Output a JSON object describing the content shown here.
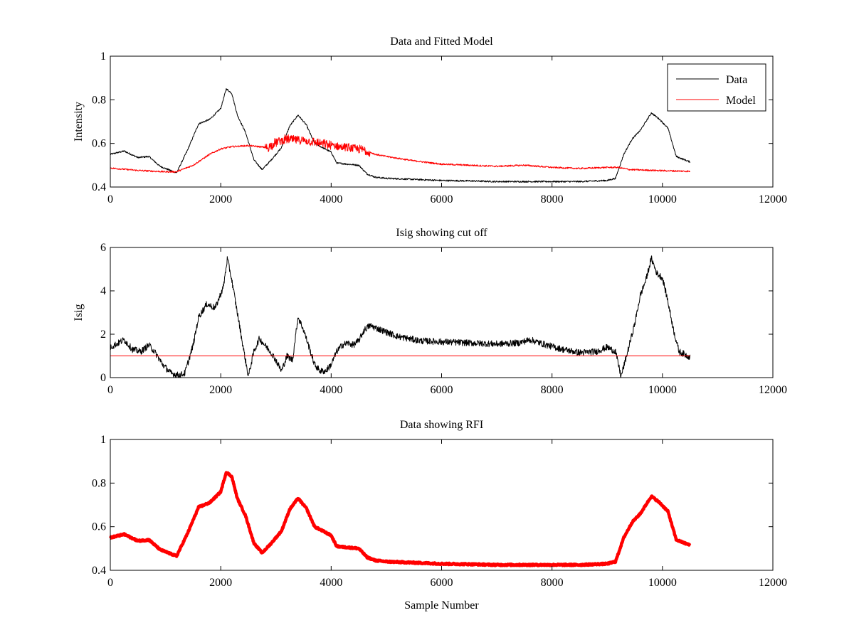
{
  "chart_data": [
    {
      "type": "line",
      "title": "Data and Fitted Model",
      "xlabel": "",
      "ylabel": "Intensity",
      "xlim": [
        0,
        12000
      ],
      "ylim": [
        0.4,
        1
      ],
      "xticks": [
        0,
        2000,
        4000,
        6000,
        8000,
        10000,
        12000
      ],
      "yticks": [
        0.4,
        0.6,
        0.8,
        1
      ],
      "xtick_labels": [
        "0",
        "2000",
        "4000",
        "6000",
        "8000",
        "10000",
        "12000"
      ],
      "ytick_labels": [
        "0.4",
        "0.6",
        "0.8",
        "1"
      ],
      "grid": false,
      "legend": "top-right",
      "series": [
        {
          "name": "Data",
          "color": "#000000",
          "x": [
            0,
            250,
            500,
            700,
            900,
            1050,
            1200,
            1400,
            1600,
            1800,
            2000,
            2100,
            2200,
            2300,
            2450,
            2600,
            2750,
            2900,
            3100,
            3250,
            3400,
            3550,
            3700,
            3850,
            4000,
            4100,
            4300,
            4500,
            4650,
            4800,
            5000,
            5500,
            6000,
            6500,
            7000,
            7500,
            8000,
            8500,
            9000,
            9150,
            9300,
            9450,
            9600,
            9800,
            9950,
            10100,
            10250,
            10500
          ],
          "y": [
            0.55,
            0.565,
            0.535,
            0.54,
            0.495,
            0.48,
            0.465,
            0.57,
            0.69,
            0.71,
            0.76,
            0.85,
            0.83,
            0.73,
            0.65,
            0.525,
            0.48,
            0.52,
            0.58,
            0.68,
            0.73,
            0.685,
            0.6,
            0.58,
            0.56,
            0.51,
            0.505,
            0.5,
            0.46,
            0.445,
            0.44,
            0.435,
            0.43,
            0.428,
            0.425,
            0.425,
            0.425,
            0.425,
            0.43,
            0.44,
            0.55,
            0.62,
            0.66,
            0.74,
            0.71,
            0.67,
            0.54,
            0.515
          ]
        },
        {
          "name": "Model",
          "color": "#ff0000",
          "x": [
            0,
            500,
            1000,
            1200,
            1500,
            1800,
            2000,
            2200,
            2500,
            2700,
            2850,
            3000,
            3200,
            3400,
            3600,
            3800,
            4000,
            4300,
            4600,
            4800,
            5000,
            5500,
            6000,
            6500,
            7000,
            7500,
            8000,
            8500,
            9000,
            9200,
            9400,
            10000,
            10500
          ],
          "y": [
            0.487,
            0.476,
            0.47,
            0.47,
            0.5,
            0.55,
            0.575,
            0.585,
            0.59,
            0.585,
            0.58,
            0.605,
            0.62,
            0.615,
            0.61,
            0.6,
            0.59,
            0.58,
            0.57,
            0.55,
            0.54,
            0.52,
            0.505,
            0.5,
            0.495,
            0.5,
            0.49,
            0.485,
            0.49,
            0.49,
            0.48,
            0.475,
            0.472
          ]
        }
      ]
    },
    {
      "type": "line",
      "title": "Isig showing cut off",
      "xlabel": "",
      "ylabel": "Isig",
      "xlim": [
        0,
        12000
      ],
      "ylim": [
        0,
        6
      ],
      "xticks": [
        0,
        2000,
        4000,
        6000,
        8000,
        10000,
        12000
      ],
      "yticks": [
        0,
        2,
        4,
        6
      ],
      "xtick_labels": [
        "0",
        "2000",
        "4000",
        "6000",
        "8000",
        "10000",
        "12000"
      ],
      "ytick_labels": [
        "0",
        "2",
        "4",
        "6"
      ],
      "grid": false,
      "series": [
        {
          "color": "#000000",
          "x": [
            0,
            150,
            250,
            400,
            550,
            700,
            800,
            950,
            1100,
            1250,
            1350,
            1500,
            1600,
            1750,
            1900,
            2050,
            2120,
            2200,
            2300,
            2400,
            2500,
            2600,
            2700,
            2800,
            2900,
            3000,
            3100,
            3200,
            3300,
            3400,
            3500,
            3600,
            3700,
            3800,
            3900,
            4000,
            4100,
            4200,
            4300,
            4400,
            4500,
            4600,
            4700,
            4900,
            5200,
            5600,
            6000,
            6500,
            7000,
            7400,
            7600,
            7900,
            8200,
            8500,
            8800,
            9000,
            9150,
            9250,
            9350,
            9500,
            9600,
            9700,
            9800,
            9900,
            10000,
            10100,
            10200,
            10300,
            10500
          ],
          "y": [
            1.4,
            1.6,
            1.75,
            1.3,
            1.2,
            1.5,
            1.2,
            0.6,
            0.2,
            0.1,
            0.2,
            1.5,
            2.8,
            3.4,
            3.2,
            4.2,
            5.5,
            4.5,
            3.0,
            1.5,
            0.05,
            1.2,
            1.8,
            1.5,
            1.2,
            0.8,
            0.3,
            1.0,
            0.8,
            2.8,
            2.2,
            1.4,
            0.6,
            0.3,
            0.3,
            0.6,
            1.2,
            1.5,
            1.6,
            1.5,
            1.7,
            2.2,
            2.4,
            2.2,
            1.9,
            1.7,
            1.65,
            1.6,
            1.55,
            1.6,
            1.75,
            1.5,
            1.3,
            1.15,
            1.2,
            1.4,
            1.2,
            0.05,
            1.0,
            2.5,
            3.8,
            4.5,
            5.5,
            4.8,
            4.6,
            3.5,
            2.2,
            1.2,
            0.95
          ]
        },
        {
          "color": "#ff0000",
          "x": [
            0,
            10500
          ],
          "y": [
            1,
            1
          ]
        }
      ]
    },
    {
      "type": "line",
      "title": "Data showing RFI",
      "xlabel": "Sample Number",
      "ylabel": "",
      "xlim": [
        0,
        12000
      ],
      "ylim": [
        0.4,
        1
      ],
      "xticks": [
        0,
        2000,
        4000,
        6000,
        8000,
        10000,
        12000
      ],
      "yticks": [
        0.4,
        0.6,
        0.8,
        1
      ],
      "xtick_labels": [
        "0",
        "2000",
        "4000",
        "6000",
        "8000",
        "10000",
        "12000"
      ],
      "ytick_labels": [
        "0.4",
        "0.6",
        "0.8",
        "1"
      ],
      "grid": false,
      "series": [
        {
          "color": "#ff0000",
          "x": [
            0,
            250,
            500,
            700,
            900,
            1050,
            1200,
            1400,
            1600,
            1800,
            2000,
            2100,
            2200,
            2300,
            2450,
            2600,
            2750,
            2900,
            3100,
            3250,
            3400,
            3550,
            3700,
            3850,
            4000,
            4100,
            4300,
            4500,
            4650,
            4800,
            5000,
            5500,
            6000,
            6500,
            7000,
            7500,
            8000,
            8500,
            9000,
            9150,
            9300,
            9450,
            9600,
            9800,
            9950,
            10100,
            10250,
            10500
          ],
          "y": [
            0.55,
            0.565,
            0.535,
            0.54,
            0.495,
            0.48,
            0.465,
            0.57,
            0.69,
            0.71,
            0.76,
            0.85,
            0.83,
            0.73,
            0.65,
            0.525,
            0.48,
            0.52,
            0.58,
            0.68,
            0.73,
            0.685,
            0.6,
            0.58,
            0.56,
            0.51,
            0.505,
            0.5,
            0.46,
            0.445,
            0.44,
            0.435,
            0.43,
            0.428,
            0.425,
            0.425,
            0.425,
            0.425,
            0.43,
            0.44,
            0.55,
            0.62,
            0.66,
            0.74,
            0.71,
            0.67,
            0.54,
            0.515
          ]
        }
      ]
    }
  ]
}
